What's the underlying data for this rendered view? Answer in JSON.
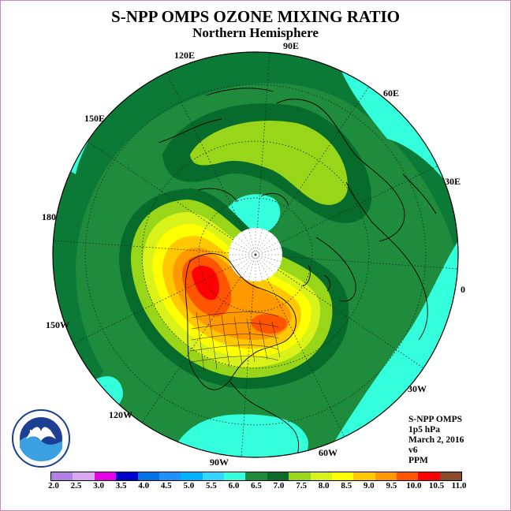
{
  "title": "S-NPP OMPS OZONE MIXING RATIO",
  "subtitle": "Northern Hemisphere",
  "longitude_labels": {
    "lon_90e": "90E",
    "lon_60e": "60E",
    "lon_30e": "30E",
    "lon_0": "0",
    "lon_30w": "30W",
    "lon_60w": "60W",
    "lon_90w": "90W",
    "lon_120w": "120W",
    "lon_150w": "150W",
    "lon_180": "180",
    "lon_150e": "150E",
    "lon_120e": "120E"
  },
  "info": {
    "instrument": "S-NPP OMPS",
    "level": "1p5 hPa",
    "date": "March 2, 2016",
    "version": "v6",
    "units": "PPM"
  },
  "logo_text": "NOAA",
  "colorbar": {
    "ticks": [
      "2.0",
      "2.5",
      "3.0",
      "3.5",
      "4.0",
      "4.5",
      "5.0",
      "5.5",
      "6.0",
      "6.5",
      "7.0",
      "7.5",
      "8.0",
      "8.5",
      "9.0",
      "9.5",
      "10.0",
      "10.5",
      "11.0"
    ],
    "colors": [
      "#b381e6",
      "#d9a6f0",
      "#e600e6",
      "#0000cc",
      "#0073e6",
      "#1e90ff",
      "#00b3ff",
      "#33d6ff",
      "#33ffdd",
      "#1e8c3c",
      "#0a6b2a",
      "#99d619",
      "#d9f21a",
      "#ffff00",
      "#ffc800",
      "#ff9900",
      "#ff5500",
      "#ff0000",
      "#8b4a2b"
    ]
  },
  "map_colors": {
    "background_dark_green": "#0b7a36",
    "mid_green": "#066b2b",
    "outer_green": "#1e8c3c",
    "cyan": "#33ffdd",
    "light_green": "#99d619",
    "yellow_green": "#d9f21a",
    "yellow": "#ffff00",
    "gold": "#ffc800",
    "orange": "#ff9900",
    "red_orange": "#ff5500",
    "red": "#ff0000",
    "missing_cap": "#ffffff"
  }
}
